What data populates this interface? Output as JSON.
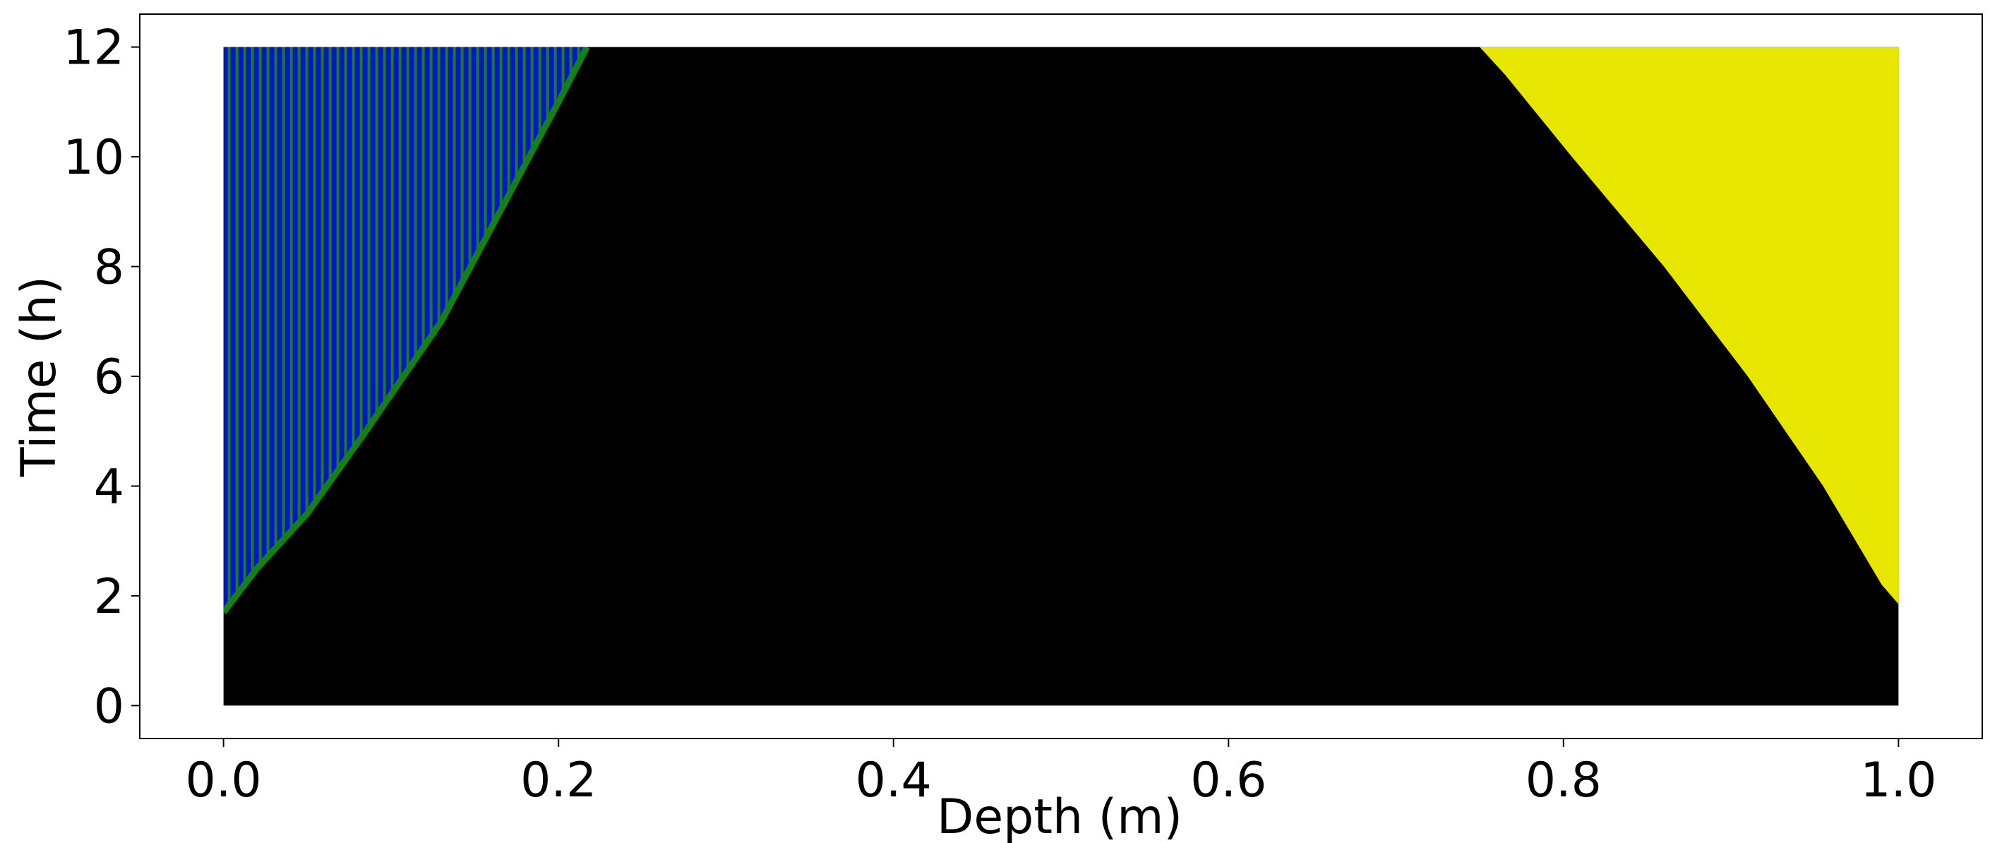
{
  "chart_data": {
    "type": "heatmap",
    "title": "",
    "xlabel": "Depth (m)",
    "ylabel": "Time (h)",
    "xlim": [
      -0.05,
      1.05
    ],
    "ylim": [
      -0.6,
      12.6
    ],
    "data_extent": {
      "x": [
        0.0,
        1.0
      ],
      "y": [
        0.0,
        12.0
      ]
    },
    "x_ticks": [
      0.0,
      0.2,
      0.4,
      0.6,
      0.8,
      1.0
    ],
    "x_tick_labels": [
      "0.0",
      "0.2",
      "0.4",
      "0.6",
      "0.8",
      "1.0"
    ],
    "y_ticks": [
      0,
      2,
      4,
      6,
      8,
      10,
      12
    ],
    "y_tick_labels": [
      "0",
      "2",
      "4",
      "6",
      "8",
      "10",
      "12"
    ],
    "grid": false,
    "legend": "none",
    "colors": {
      "background_region": "#000000",
      "left_region": "#0018c8",
      "left_stripe": "#1e7a1e",
      "left_front": "#158015",
      "right_region": "#e6e600"
    },
    "regions": [
      {
        "name": "left",
        "description_values": "front depth x as function of time t",
        "boundary": [
          {
            "t": 1.7,
            "x": 0.0
          },
          {
            "t": 2.5,
            "x": 0.02
          },
          {
            "t": 3.5,
            "x": 0.05
          },
          {
            "t": 5.0,
            "x": 0.085
          },
          {
            "t": 7.0,
            "x": 0.13
          },
          {
            "t": 9.0,
            "x": 0.165
          },
          {
            "t": 11.0,
            "x": 0.2
          },
          {
            "t": 12.0,
            "x": 0.217
          }
        ]
      },
      {
        "name": "right",
        "boundary": [
          {
            "t": 1.85,
            "x": 1.0
          },
          {
            "t": 2.2,
            "x": 0.99
          },
          {
            "t": 4.0,
            "x": 0.955
          },
          {
            "t": 6.0,
            "x": 0.91
          },
          {
            "t": 8.0,
            "x": 0.86
          },
          {
            "t": 10.0,
            "x": 0.805
          },
          {
            "t": 11.5,
            "x": 0.765
          },
          {
            "t": 12.0,
            "x": 0.75
          }
        ]
      }
    ]
  }
}
